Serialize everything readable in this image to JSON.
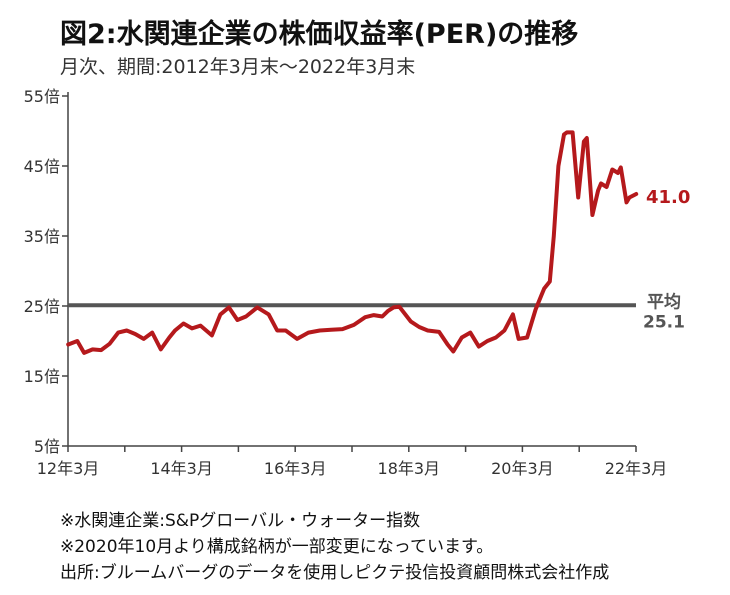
{
  "title": "図2:水関連企業の株価収益率(PER)の推移",
  "subtitle": "月次、期間:2012年3月末～2022年3月末",
  "notes": [
    "※水関連企業:S&Pグローバル・ウォーター指数",
    "※2020年10月より構成銘柄が一部変更になっています。",
    "出所:ブルームバーグのデータを使用しピクテ投信投資顧問株式会社作成"
  ],
  "colors": {
    "series": "#b5191c",
    "average": "#555555",
    "axis": "#444444"
  },
  "chart_data": {
    "type": "line",
    "ylim": [
      5,
      55
    ],
    "y_ticks": [
      5,
      15,
      25,
      35,
      45,
      55
    ],
    "y_tick_labels": [
      "5倍",
      "15倍",
      "25倍",
      "35倍",
      "45倍",
      "55倍"
    ],
    "x_range": [
      2012.167,
      2022.167
    ],
    "x_ticks": [
      2012.167,
      2014.167,
      2016.167,
      2018.167,
      2020.167,
      2022.167
    ],
    "x_tick_labels": [
      "12年3月",
      "14年3月",
      "16年3月",
      "18年3月",
      "20年3月",
      "22年3月"
    ],
    "series": [
      {
        "x": [
          2012.17,
          2012.33,
          2012.45,
          2012.6,
          2012.75,
          2012.9,
          2013.05,
          2013.2,
          2013.35,
          2013.5,
          2013.65,
          2013.8,
          2013.95,
          2014.05,
          2014.2,
          2014.35,
          2014.5,
          2014.6,
          2014.7,
          2014.85,
          2015.0,
          2015.15,
          2015.3,
          2015.5,
          2015.7,
          2015.85,
          2016.0,
          2016.2,
          2016.4,
          2016.6,
          2016.8,
          2017.0,
          2017.2,
          2017.4,
          2017.55,
          2017.7,
          2017.8,
          2017.9,
          2018.0,
          2018.2,
          2018.35,
          2018.5,
          2018.7,
          2018.85,
          2018.95,
          2019.1,
          2019.25,
          2019.4,
          2019.55,
          2019.7,
          2019.85,
          2020.0,
          2020.1,
          2020.25,
          2020.4,
          2020.5,
          2020.55,
          2020.65,
          2020.72,
          2020.8,
          2020.9,
          2020.95,
          2021.05,
          2021.15,
          2021.25,
          2021.3,
          2021.4,
          2021.5,
          2021.55,
          2021.65,
          2021.75,
          2021.85,
          2021.9,
          2022.0,
          2022.05,
          2022.17
        ],
        "y": [
          19.5,
          20.0,
          18.3,
          18.8,
          18.7,
          19.6,
          21.2,
          21.5,
          21.0,
          20.3,
          21.2,
          18.8,
          20.5,
          21.5,
          22.5,
          21.8,
          22.2,
          21.5,
          20.8,
          23.8,
          24.8,
          23.0,
          23.5,
          24.8,
          23.8,
          21.5,
          21.5,
          20.3,
          21.2,
          21.5,
          21.6,
          21.7,
          22.3,
          23.4,
          23.7,
          23.5,
          24.3,
          24.8,
          24.9,
          22.8,
          22.0,
          21.5,
          21.3,
          19.5,
          18.5,
          20.5,
          21.2,
          19.2,
          20.0,
          20.5,
          21.5,
          23.8,
          20.3,
          20.5,
          24.5,
          26.5,
          27.5,
          28.5,
          35.0,
          45.0,
          49.5,
          49.8,
          49.8,
          40.5,
          48.5,
          49.0,
          38.0,
          41.5,
          42.5,
          42.0,
          44.5,
          44.0,
          44.8,
          39.8,
          40.5,
          41.0
        ]
      }
    ],
    "average": {
      "label": "平均",
      "value": 25.1,
      "label_value": "25.1"
    },
    "end_label": "41.0"
  }
}
